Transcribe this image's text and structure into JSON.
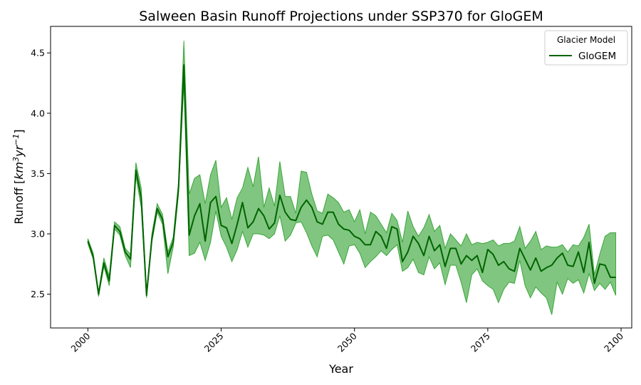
{
  "chart_data": {
    "type": "line",
    "title": "Salween Basin Runoff Projections under SSP370 for GloGEM",
    "xlabel": "Year",
    "ylabel": "Runoff [km³yr⁻¹]",
    "ylabel_parts": {
      "base": "Runoff [",
      "unit1": "km",
      "exp1": "3",
      "unit2": "yr",
      "exp2": "−1",
      "close": "]"
    },
    "xlim": [
      1993,
      2102
    ],
    "ylim": [
      2.22,
      4.72
    ],
    "x_ticks": [
      2000,
      2025,
      2050,
      2075,
      2100
    ],
    "y_ticks": [
      2.5,
      3.0,
      3.5,
      4.0,
      4.5
    ],
    "x_tick_labels": [
      "2000",
      "2025",
      "2050",
      "2075",
      "2100"
    ],
    "y_tick_labels": [
      "2.5",
      "3.0",
      "3.5",
      "4.0",
      "4.5"
    ],
    "legend": {
      "title": "Glacier Model",
      "placement": "top-right",
      "entries": [
        "GloGEM"
      ]
    },
    "grid": false,
    "colors": {
      "line": "#006400",
      "band": "#2ca02c"
    },
    "x": [
      2000,
      2001,
      2002,
      2003,
      2004,
      2005,
      2006,
      2007,
      2008,
      2009,
      2010,
      2011,
      2012,
      2013,
      2014,
      2015,
      2016,
      2017,
      2018,
      2019,
      2020,
      2021,
      2022,
      2023,
      2024,
      2025,
      2026,
      2027,
      2028,
      2029,
      2030,
      2031,
      2032,
      2033,
      2034,
      2035,
      2036,
      2037,
      2038,
      2039,
      2040,
      2041,
      2042,
      2043,
      2044,
      2045,
      2046,
      2047,
      2048,
      2049,
      2050,
      2051,
      2052,
      2053,
      2054,
      2055,
      2056,
      2057,
      2058,
      2059,
      2060,
      2061,
      2062,
      2063,
      2064,
      2065,
      2066,
      2067,
      2068,
      2069,
      2070,
      2071,
      2072,
      2073,
      2074,
      2075,
      2076,
      2077,
      2078,
      2079,
      2080,
      2081,
      2082,
      2083,
      2084,
      2085,
      2086,
      2087,
      2088,
      2089,
      2090,
      2091,
      2092,
      2093,
      2094,
      2095,
      2096,
      2097,
      2098,
      2099
    ],
    "series": [
      {
        "name": "GloGEM",
        "mean": [
          2.94,
          2.81,
          2.5,
          2.76,
          2.61,
          3.07,
          3.02,
          2.85,
          2.79,
          3.53,
          3.3,
          2.49,
          2.96,
          3.21,
          3.12,
          2.81,
          2.93,
          3.38,
          4.4,
          2.99,
          3.15,
          3.25,
          2.94,
          3.26,
          3.31,
          3.07,
          3.05,
          2.92,
          3.08,
          3.26,
          3.05,
          3.1,
          3.21,
          3.15,
          3.04,
          3.09,
          3.32,
          3.18,
          3.12,
          3.11,
          3.22,
          3.28,
          3.22,
          3.1,
          3.08,
          3.18,
          3.18,
          3.08,
          3.04,
          3.03,
          2.98,
          2.96,
          2.91,
          2.91,
          3.02,
          2.98,
          2.88,
          3.06,
          3.04,
          2.77,
          2.85,
          2.98,
          2.92,
          2.82,
          2.98,
          2.86,
          2.91,
          2.73,
          2.88,
          2.88,
          2.75,
          2.82,
          2.78,
          2.82,
          2.68,
          2.87,
          2.83,
          2.74,
          2.77,
          2.71,
          2.69,
          2.88,
          2.79,
          2.7,
          2.8,
          2.69,
          2.72,
          2.74,
          2.8,
          2.84,
          2.74,
          2.73,
          2.85,
          2.68,
          2.93,
          2.59,
          2.75,
          2.74,
          2.64,
          2.64
        ],
        "upper": [
          2.96,
          2.84,
          2.52,
          2.8,
          2.65,
          3.1,
          3.06,
          2.88,
          2.83,
          3.59,
          3.38,
          2.51,
          3.0,
          3.25,
          3.16,
          2.85,
          2.97,
          3.43,
          4.6,
          3.33,
          3.46,
          3.49,
          3.25,
          3.49,
          3.61,
          3.22,
          3.3,
          3.12,
          3.3,
          3.38,
          3.55,
          3.39,
          3.64,
          3.22,
          3.38,
          3.23,
          3.6,
          3.31,
          3.31,
          3.17,
          3.52,
          3.51,
          3.33,
          3.19,
          3.17,
          3.33,
          3.3,
          3.26,
          3.18,
          3.2,
          3.1,
          3.2,
          3.0,
          3.18,
          3.15,
          3.08,
          3.01,
          3.17,
          3.11,
          2.93,
          3.19,
          3.06,
          2.98,
          3.05,
          3.16,
          3.02,
          3.07,
          2.88,
          3.0,
          2.95,
          2.9,
          3.0,
          2.91,
          2.93,
          2.92,
          2.93,
          2.95,
          2.9,
          2.92,
          2.92,
          2.94,
          3.06,
          2.88,
          2.94,
          3.02,
          2.87,
          2.9,
          2.89,
          2.89,
          2.91,
          2.85,
          2.91,
          2.9,
          2.97,
          3.08,
          2.66,
          2.83,
          2.98,
          3.01,
          3.01
        ],
        "lower": [
          2.92,
          2.79,
          2.48,
          2.73,
          2.57,
          3.04,
          2.99,
          2.82,
          2.72,
          3.48,
          3.22,
          2.47,
          2.93,
          3.18,
          3.08,
          2.67,
          2.89,
          3.33,
          4.25,
          2.82,
          2.84,
          2.93,
          2.78,
          2.93,
          3.19,
          2.98,
          2.89,
          2.77,
          2.87,
          3.02,
          2.89,
          3.0,
          3.0,
          2.99,
          2.96,
          3.0,
          3.15,
          2.94,
          2.99,
          3.09,
          3.1,
          3.01,
          2.9,
          2.81,
          2.98,
          2.99,
          2.95,
          2.85,
          2.75,
          2.9,
          2.91,
          2.84,
          2.72,
          2.77,
          2.81,
          2.86,
          2.82,
          2.87,
          2.91,
          2.69,
          2.72,
          2.79,
          2.68,
          2.66,
          2.81,
          2.71,
          2.76,
          2.58,
          2.74,
          2.74,
          2.6,
          2.43,
          2.66,
          2.71,
          2.61,
          2.57,
          2.54,
          2.43,
          2.54,
          2.6,
          2.59,
          2.78,
          2.57,
          2.47,
          2.56,
          2.51,
          2.47,
          2.33,
          2.6,
          2.5,
          2.63,
          2.59,
          2.62,
          2.51,
          2.67,
          2.53,
          2.59,
          2.54,
          2.6,
          2.49
        ]
      }
    ]
  }
}
